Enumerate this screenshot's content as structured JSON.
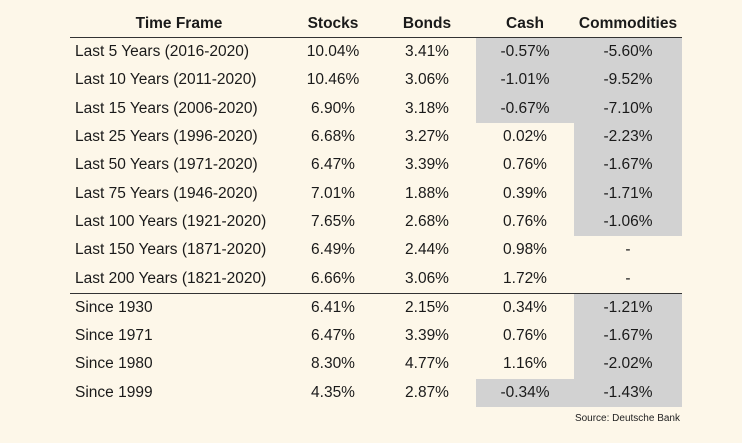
{
  "chart_data": {
    "type": "table",
    "columns": [
      "Time Frame",
      "Stocks",
      "Bonds",
      "Cash",
      "Commodities"
    ],
    "rows": [
      {
        "label": "Last 5 Years (2016-2020)",
        "values": [
          "10.04%",
          "3.41%",
          "-0.57%",
          "-5.60%"
        ],
        "shaded": [
          false,
          false,
          true,
          true
        ]
      },
      {
        "label": "Last 10 Years (2011-2020)",
        "values": [
          "10.46%",
          "3.06%",
          "-1.01%",
          "-9.52%"
        ],
        "shaded": [
          false,
          false,
          true,
          true
        ]
      },
      {
        "label": "Last 15 Years (2006-2020)",
        "values": [
          "6.90%",
          "3.18%",
          "-0.67%",
          "-7.10%"
        ],
        "shaded": [
          false,
          false,
          true,
          true
        ]
      },
      {
        "label": "Last 25 Years (1996-2020)",
        "values": [
          "6.68%",
          "3.27%",
          "0.02%",
          "-2.23%"
        ],
        "shaded": [
          false,
          false,
          false,
          true
        ]
      },
      {
        "label": "Last 50 Years (1971-2020)",
        "values": [
          "6.47%",
          "3.39%",
          "0.76%",
          "-1.67%"
        ],
        "shaded": [
          false,
          false,
          false,
          true
        ]
      },
      {
        "label": "Last 75 Years (1946-2020)",
        "values": [
          "7.01%",
          "1.88%",
          "0.39%",
          "-1.71%"
        ],
        "shaded": [
          false,
          false,
          false,
          true
        ]
      },
      {
        "label": "Last 100 Years (1921-2020)",
        "values": [
          "7.65%",
          "2.68%",
          "0.76%",
          "-1.06%"
        ],
        "shaded": [
          false,
          false,
          false,
          true
        ]
      },
      {
        "label": "Last 150 Years (1871-2020)",
        "values": [
          "6.49%",
          "2.44%",
          "0.98%",
          "-"
        ],
        "shaded": [
          false,
          false,
          false,
          false
        ]
      },
      {
        "label": "Last 200 Years (1821-2020)",
        "values": [
          "6.66%",
          "3.06%",
          "1.72%",
          "-"
        ],
        "shaded": [
          false,
          false,
          false,
          false
        ]
      },
      {
        "label": "Since 1930",
        "values": [
          "6.41%",
          "2.15%",
          "0.34%",
          "-1.21%"
        ],
        "shaded": [
          false,
          false,
          false,
          true
        ],
        "separator": true
      },
      {
        "label": "Since 1971",
        "values": [
          "6.47%",
          "3.39%",
          "0.76%",
          "-1.67%"
        ],
        "shaded": [
          false,
          false,
          false,
          true
        ]
      },
      {
        "label": "Since 1980",
        "values": [
          "8.30%",
          "4.77%",
          "1.16%",
          "-2.02%"
        ],
        "shaded": [
          false,
          false,
          false,
          true
        ]
      },
      {
        "label": "Since 1999",
        "values": [
          "4.35%",
          "2.87%",
          "-0.34%",
          "-1.43%"
        ],
        "shaded": [
          false,
          false,
          true,
          true
        ]
      }
    ],
    "source": "Source: Deutsche Bank"
  },
  "colors": {
    "background": "#fdf7e9",
    "shade": "#d2d2d2",
    "rule": "#333333"
  }
}
